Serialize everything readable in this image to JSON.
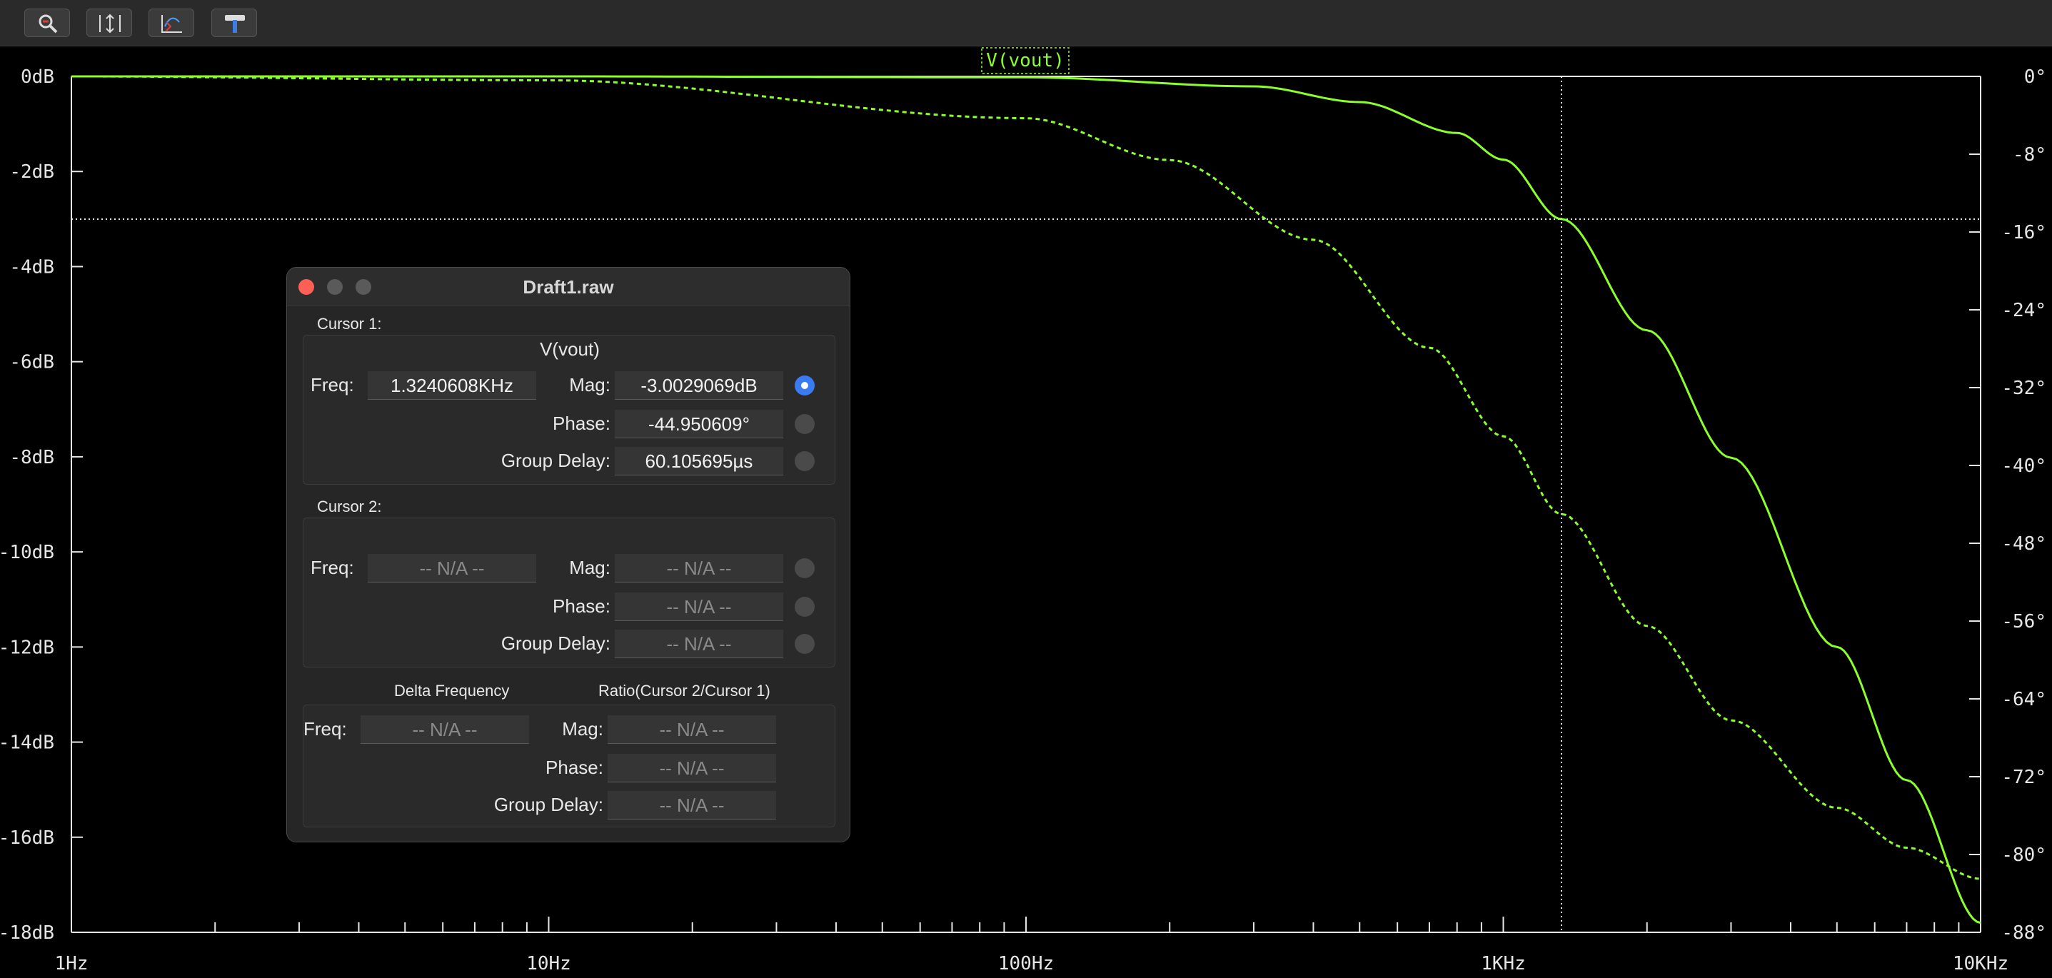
{
  "toolbar": {
    "buttons": [
      {
        "icon": "zoom-icon"
      },
      {
        "icon": "autoscale-icon"
      },
      {
        "icon": "pan-icon"
      },
      {
        "icon": "hammer-icon"
      }
    ]
  },
  "chart_data": {
    "type": "line",
    "trace_label": "V(vout)",
    "x_scale": "log",
    "xlim": [
      1,
      10000
    ],
    "xticks": [
      {
        "value": 1,
        "label": "1Hz"
      },
      {
        "value": 10,
        "label": "10Hz"
      },
      {
        "value": 100,
        "label": "100Hz"
      },
      {
        "value": 1000,
        "label": "1KHz"
      },
      {
        "value": 10000,
        "label": "10KHz"
      }
    ],
    "ylim_left": [
      -18,
      0
    ],
    "yticks_left": [
      "0dB",
      "-2dB",
      "-4dB",
      "-6dB",
      "-8dB",
      "-10dB",
      "-12dB",
      "-14dB",
      "-16dB",
      "-18dB"
    ],
    "ylim_right": [
      -88,
      0
    ],
    "yticks_right": [
      "0°",
      "-8°",
      "-16°",
      "-24°",
      "-32°",
      "-40°",
      "-48°",
      "-56°",
      "-64°",
      "-72°",
      "-80°",
      "-88°"
    ],
    "series": [
      {
        "quantity": "magnitude",
        "style": "solid",
        "color": "#8cff2a",
        "x": [
          1,
          10,
          100,
          300,
          500,
          800,
          1000,
          1324,
          2000,
          3000,
          5000,
          7000,
          10000
        ],
        "y": [
          0,
          0,
          -0.02,
          -0.21,
          -0.54,
          -1.19,
          -1.75,
          -3.0,
          -5.34,
          -8.02,
          -12.0,
          -14.8,
          -17.8
        ]
      },
      {
        "quantity": "phase",
        "style": "dashed",
        "color": "#8cff2a",
        "x": [
          1,
          10,
          100,
          200,
          400,
          700,
          1000,
          1324,
          2000,
          3000,
          5000,
          7000,
          10000
        ],
        "y": [
          0,
          -0.4,
          -4.3,
          -8.6,
          -16.8,
          -27.9,
          -37.0,
          -45.0,
          -56.5,
          -66.2,
          -75.2,
          -79.3,
          -82.5
        ]
      }
    ],
    "cursor": {
      "x": 1324.0608,
      "y_db": -3.0029069
    },
    "colors": {
      "trace": "#8cff2a",
      "axes": "#e6e6e6",
      "background": "#000000"
    }
  },
  "window": {
    "title": "Draft1.raw",
    "cursor1": {
      "section": "Cursor 1:",
      "trace": "V(vout)",
      "freq_label": "Freq:",
      "freq": "1.3240608KHz",
      "mag_label": "Mag:",
      "mag": "-3.0029069dB",
      "phase_label": "Phase:",
      "phase": "-44.950609°",
      "gd_label": "Group Delay:",
      "gd": "60.105695µs"
    },
    "cursor2": {
      "section": "Cursor 2:",
      "freq_label": "Freq:",
      "freq": "-- N/A --",
      "mag_label": "Mag:",
      "mag": "-- N/A --",
      "phase_label": "Phase:",
      "phase": "-- N/A --",
      "gd_label": "Group Delay:",
      "gd": "-- N/A --"
    },
    "delta": {
      "delta_heading": "Delta Frequency",
      "ratio_heading": "Ratio(Cursor 2/Cursor 1)",
      "freq_label": "Freq:",
      "freq": "-- N/A --",
      "mag_label": "Mag:",
      "mag": "-- N/A --",
      "phase_label": "Phase:",
      "phase": "-- N/A --",
      "gd_label": "Group Delay:",
      "gd": "-- N/A --"
    }
  }
}
